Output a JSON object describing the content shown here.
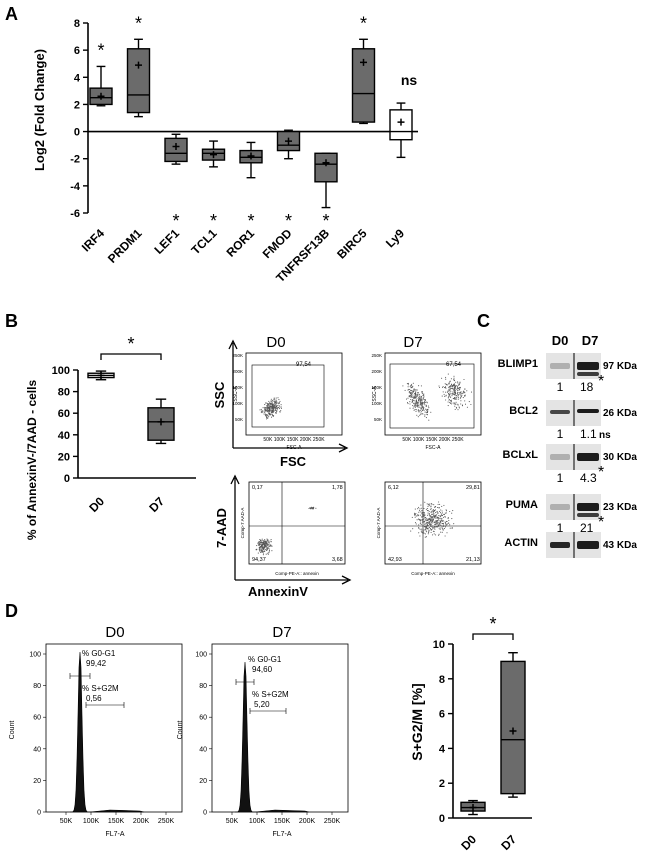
{
  "panels": {
    "A": "A",
    "B": "B",
    "C": "C",
    "D": "D"
  },
  "colors": {
    "box_fill": "#6b6b6b",
    "box_white": "#ffffff",
    "stroke": "#000000",
    "blot_bg": "#e4e4e4",
    "band": "#111111",
    "flow_dot": "#555555"
  },
  "chart_data": [
    {
      "id": "A",
      "type": "box",
      "ylabel": "Log2 (Fold Change)",
      "ylim": [
        -6,
        8
      ],
      "yticks": [
        "8",
        "6",
        "4",
        "2",
        "0",
        "-2",
        "-4",
        "-6"
      ],
      "ytick_values": [
        8,
        6,
        4,
        2,
        0,
        -2,
        -4,
        -6
      ],
      "categories": [
        "IRF4",
        "PRDM1",
        "LEF1",
        "TCL1",
        "ROR1",
        "FMOD",
        "TNFRSF13B",
        "BIRC5",
        "Ly9"
      ],
      "boxes": [
        {
          "min": 1.9,
          "q1": 2.0,
          "median": 2.5,
          "q3": 3.2,
          "max": 4.8,
          "mean": 2.6,
          "fill": "gray",
          "sig": "*",
          "sig_pos": "top"
        },
        {
          "min": 1.1,
          "q1": 1.4,
          "median": 2.7,
          "q3": 6.1,
          "max": 6.8,
          "mean": 4.9,
          "fill": "gray",
          "sig": "*",
          "sig_pos": "top"
        },
        {
          "min": -2.4,
          "q1": -2.2,
          "median": -1.6,
          "q3": -0.5,
          "max": -0.2,
          "mean": -1.1,
          "fill": "gray",
          "sig": "*",
          "sig_pos": "bottom"
        },
        {
          "min": -2.6,
          "q1": -2.1,
          "median": -1.6,
          "q3": -1.3,
          "max": -0.7,
          "mean": -1.7,
          "fill": "gray",
          "sig": "*",
          "sig_pos": "bottom"
        },
        {
          "min": -3.4,
          "q1": -2.3,
          "median": -1.9,
          "q3": -1.4,
          "max": -0.8,
          "mean": -1.8,
          "fill": "gray",
          "sig": "*",
          "sig_pos": "bottom"
        },
        {
          "min": -2.0,
          "q1": -1.4,
          "median": -1.0,
          "q3": 0.0,
          "max": 0.1,
          "mean": -0.7,
          "fill": "gray",
          "sig": "*",
          "sig_pos": "bottom"
        },
        {
          "min": -5.6,
          "q1": -3.7,
          "median": -2.4,
          "q3": -1.6,
          "max": -1.6,
          "mean": -2.3,
          "fill": "gray",
          "sig": "*",
          "sig_pos": "bottom"
        },
        {
          "min": 0.6,
          "q1": 0.7,
          "median": 2.8,
          "q3": 6.1,
          "max": 6.8,
          "mean": 5.1,
          "fill": "gray",
          "sig": "*",
          "sig_pos": "top"
        },
        {
          "min": -1.9,
          "q1": -0.6,
          "median": 0.0,
          "q3": 1.6,
          "max": 2.1,
          "mean": 0.7,
          "fill": "white",
          "sig": "ns",
          "sig_pos": "top"
        }
      ]
    },
    {
      "id": "B",
      "type": "box",
      "ylabel": "% of AnnexinV-/7AAD - cells",
      "ylim": [
        0,
        100
      ],
      "yticks": [
        "100",
        "80",
        "60",
        "40",
        "20",
        "0"
      ],
      "ytick_values": [
        100,
        80,
        60,
        40,
        20,
        0
      ],
      "categories": [
        "D0",
        "D7"
      ],
      "boxes": [
        {
          "min": 91,
          "q1": 93,
          "median": 95,
          "q3": 97,
          "max": 99,
          "mean": 95,
          "fill": "white"
        },
        {
          "min": 32,
          "q1": 35,
          "median": 52,
          "q3": 65,
          "max": 73,
          "mean": 52,
          "fill": "gray"
        }
      ],
      "significance": "*"
    },
    {
      "id": "D",
      "type": "box",
      "ylabel": "S+G2/M [%]",
      "ylim": [
        0,
        10
      ],
      "yticks": [
        "10",
        "8",
        "6",
        "4",
        "2",
        "0"
      ],
      "ytick_values": [
        10,
        8,
        6,
        4,
        2,
        0
      ],
      "categories": [
        "D0",
        "D7"
      ],
      "boxes": [
        {
          "min": 0.2,
          "q1": 0.4,
          "median": 0.6,
          "q3": 0.9,
          "max": 1.0,
          "mean": 0.6,
          "fill": "gray"
        },
        {
          "min": 1.2,
          "q1": 1.4,
          "median": 4.5,
          "q3": 9.0,
          "max": 9.5,
          "mean": 5.0,
          "fill": "gray"
        }
      ],
      "significance": "*"
    }
  ],
  "flow": {
    "d0": "D0",
    "d7": "D7",
    "ssc": "SSC",
    "fsc": "FSC",
    "aad": "7-AAD",
    "annexin": "AnnexinV",
    "scatter_gate_d0": "97,54",
    "scatter_gate_d7": "67,54",
    "fsc_ticks": "50K 100K 150K 200K 250K",
    "fsc_axis": "FSC-A",
    "ssc_axis": "SSC-A",
    "ssc_ticks": [
      "250K",
      "200K",
      "150K",
      "100K",
      "50K"
    ],
    "quad_d0": {
      "tl": "0,17",
      "tr": "1,78",
      "bl": "94,37",
      "br": "3,68"
    },
    "quad_d7": {
      "tl": "6,12",
      "tr": "29,81",
      "bl": "42,93",
      "br": "21,13"
    },
    "quad_x_axis": "Comp-PE-A:: annexin",
    "quad_y_axis": "Comp-7 AAD-A"
  },
  "western": {
    "d0": "D0",
    "d7": "D7",
    "rows": [
      {
        "name": "BLIMP1",
        "kda": "97 KDa",
        "ratio_d0": "1",
        "ratio_d7": "18",
        "sig": "*"
      },
      {
        "name": "BCL2",
        "kda": "26 KDa",
        "ratio_d0": "1",
        "ratio_d7": "1.1",
        "sig": "ns"
      },
      {
        "name": "BCLxL",
        "kda": "30 KDa",
        "ratio_d0": "1",
        "ratio_d7": "4.3",
        "sig": "*"
      },
      {
        "name": "PUMA",
        "kda": "23 KDa",
        "ratio_d0": "1",
        "ratio_d7": "21",
        "sig": "*"
      },
      {
        "name": "ACTIN",
        "kda": "43 KDa"
      }
    ]
  },
  "cellcycle": {
    "d0": "D0",
    "d7": "D7",
    "d0_g1_label": "% G0-G1",
    "d0_g1_value": "99,42",
    "d0_s_label": "% S+G2M",
    "d0_s_value": "0,56",
    "d7_g1_label": "% G0-G1",
    "d7_g1_value": "94,60",
    "d7_s_label": "% S+G2M",
    "d7_s_value": "5,20",
    "count": "Count",
    "xaxis": "FL7-A",
    "xticks": [
      "50K",
      "100K",
      "150K",
      "200K",
      "250K"
    ],
    "yticks": [
      "100",
      "80",
      "60",
      "40",
      "20",
      "0"
    ]
  }
}
